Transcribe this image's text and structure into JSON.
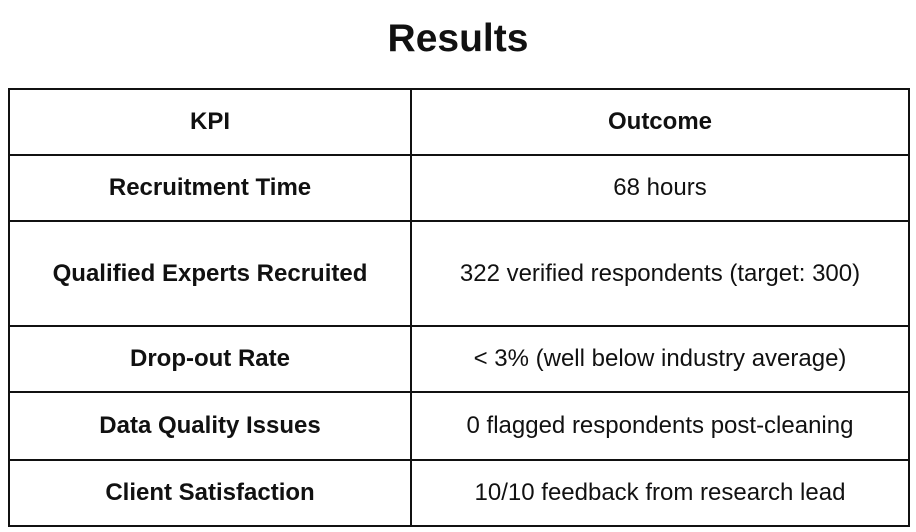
{
  "title": "Results",
  "table": {
    "headers": [
      "KPI",
      "Outcome"
    ],
    "rows": [
      {
        "kpi": "Recruitment Time",
        "outcome": "68 hours"
      },
      {
        "kpi": "Qualified Experts Recruited",
        "outcome": "322 verified respondents (target: 300)"
      },
      {
        "kpi": "Drop-out Rate",
        "outcome": "< 3% (well below industry average)"
      },
      {
        "kpi": "Data Quality Issues",
        "outcome": "0 flagged respondents post-cleaning"
      },
      {
        "kpi": "Client Satisfaction",
        "outcome": "10/10 feedback from research lead"
      }
    ]
  }
}
